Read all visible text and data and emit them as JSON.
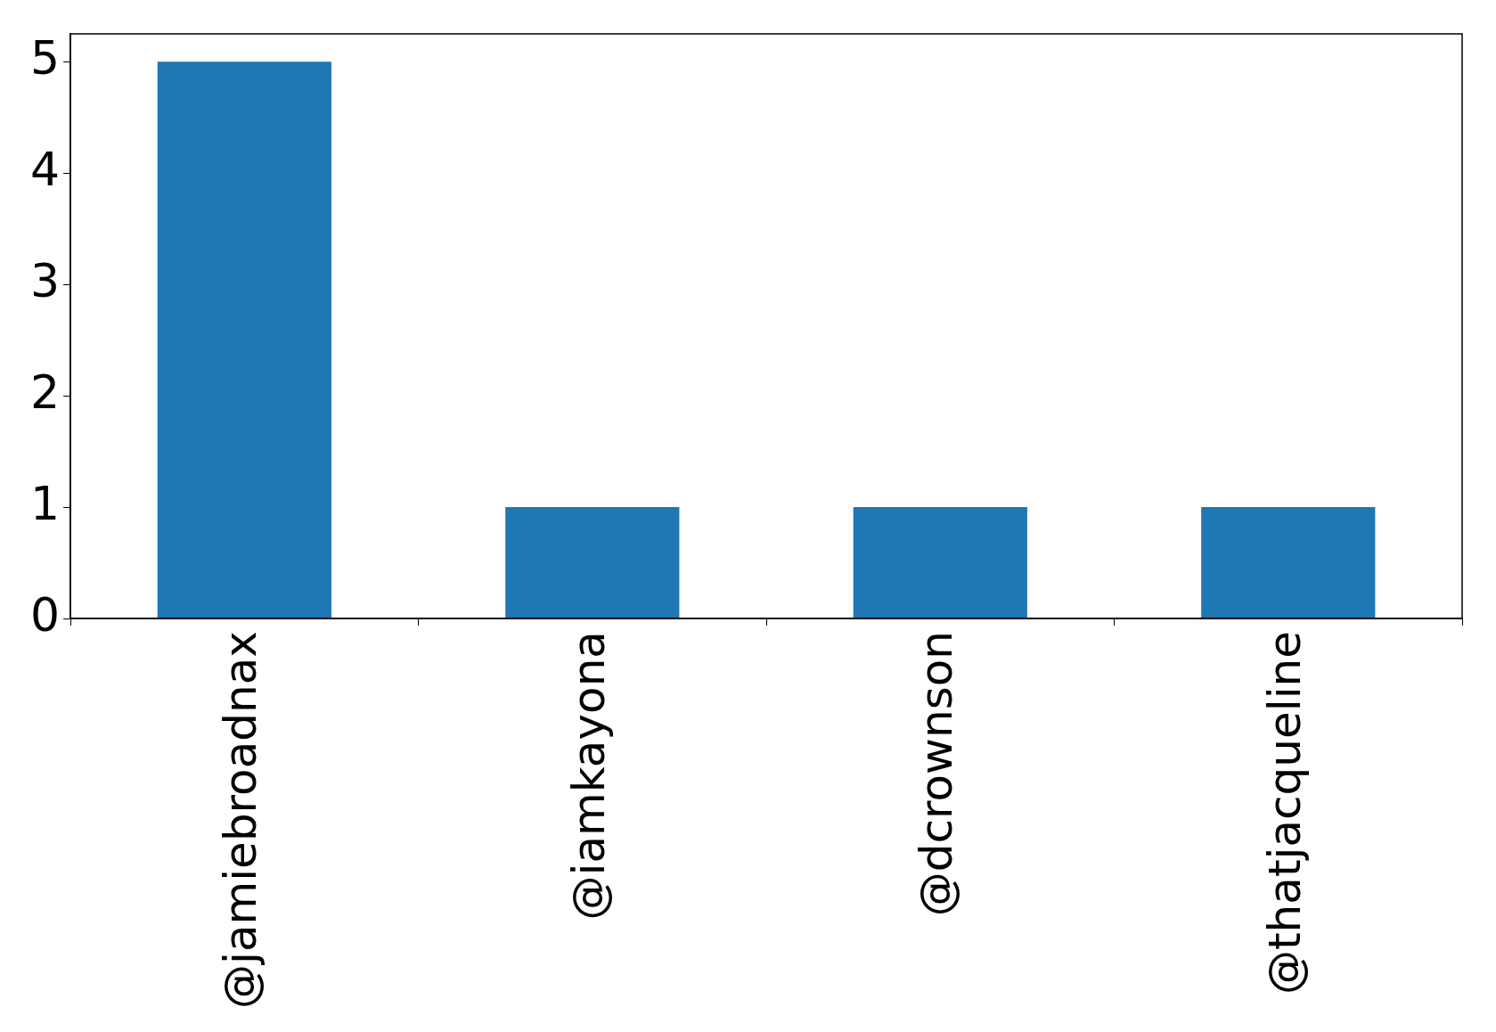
{
  "chart_data": {
    "type": "bar",
    "categories": [
      "@jamiebroadnax",
      "@iamkayona",
      "@dcrownson",
      "@thatjacqueline"
    ],
    "values": [
      5,
      1,
      1,
      1
    ],
    "color": "#1f77b4",
    "ylim": [
      0,
      5.25
    ],
    "yticks": [
      0,
      1,
      2,
      3,
      4,
      5
    ],
    "grid": false,
    "legend": false
  }
}
